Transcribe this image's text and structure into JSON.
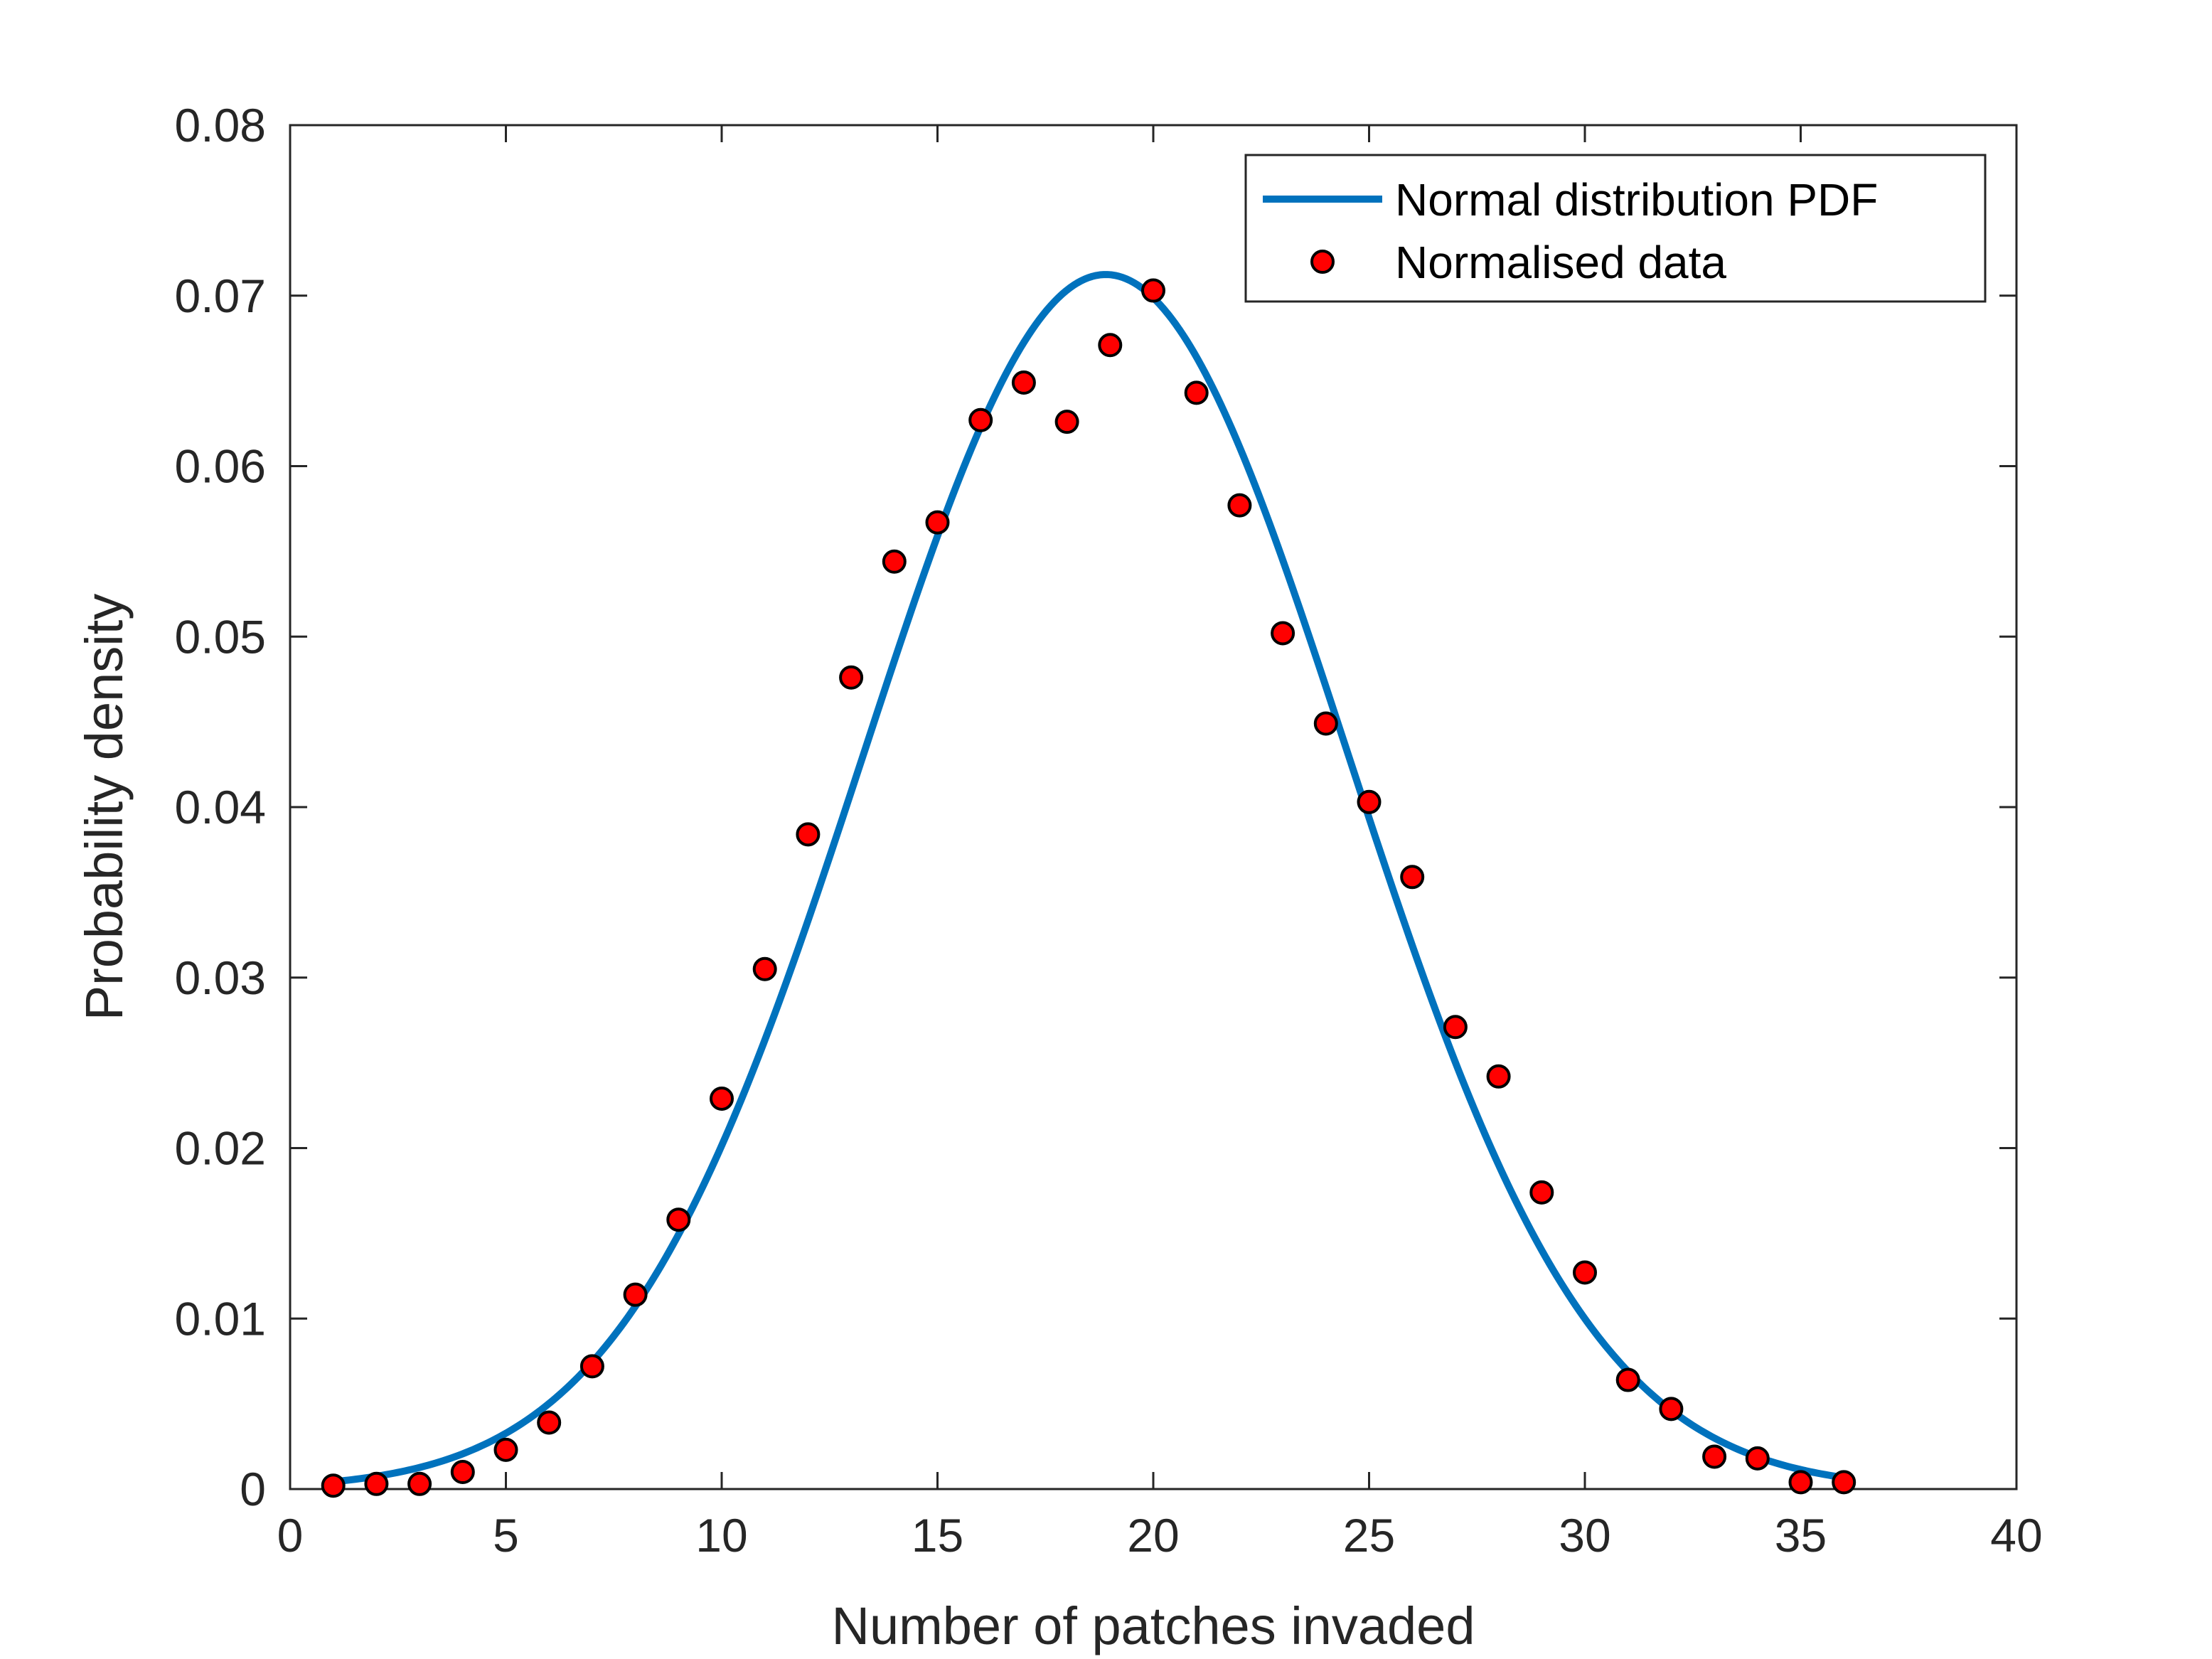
{
  "chart_data": {
    "type": "scatter",
    "xlabel": "Number of patches invaded",
    "ylabel": "Probability density",
    "xlim": [
      0,
      40
    ],
    "ylim": [
      0,
      0.08
    ],
    "xticks": [
      "0",
      "5",
      "10",
      "15",
      "20",
      "25",
      "30",
      "35",
      "40"
    ],
    "yticks": [
      "0",
      "0.01",
      "0.02",
      "0.03",
      "0.04",
      "0.05",
      "0.06",
      "0.07",
      "0.08"
    ],
    "grid": false,
    "legend_position": "top-right",
    "series": [
      {
        "name": "Normal distribution PDF",
        "kind": "line",
        "color": "#0072BD",
        "mean": 18.9,
        "sd": 5.6,
        "x_range": [
          1,
          36
        ]
      },
      {
        "name": "Normalised data",
        "kind": "points",
        "color": "#FF0000",
        "edge_color": "#000000",
        "x": [
          1,
          2,
          3,
          4,
          5,
          6,
          7,
          8,
          9,
          10,
          11,
          12,
          13,
          14,
          15,
          16,
          17,
          18,
          19,
          20,
          21,
          22,
          23,
          24,
          25,
          26,
          27,
          28,
          29,
          30,
          31,
          32,
          33,
          34,
          35,
          36
        ],
        "y": [
          0.0002,
          0.0003,
          0.0003,
          0.001,
          0.0023,
          0.0039,
          0.0072,
          0.0114,
          0.0158,
          0.0229,
          0.0305,
          0.0384,
          0.0476,
          0.0544,
          0.0567,
          0.0627,
          0.0649,
          0.0626,
          0.0671,
          0.0703,
          0.0643,
          0.0577,
          0.0502,
          0.0449,
          0.0403,
          0.0359,
          0.0271,
          0.0242,
          0.0174,
          0.0127,
          0.0064,
          0.0047,
          0.0019,
          0.0018,
          0.0004,
          0.0004
        ]
      }
    ]
  }
}
